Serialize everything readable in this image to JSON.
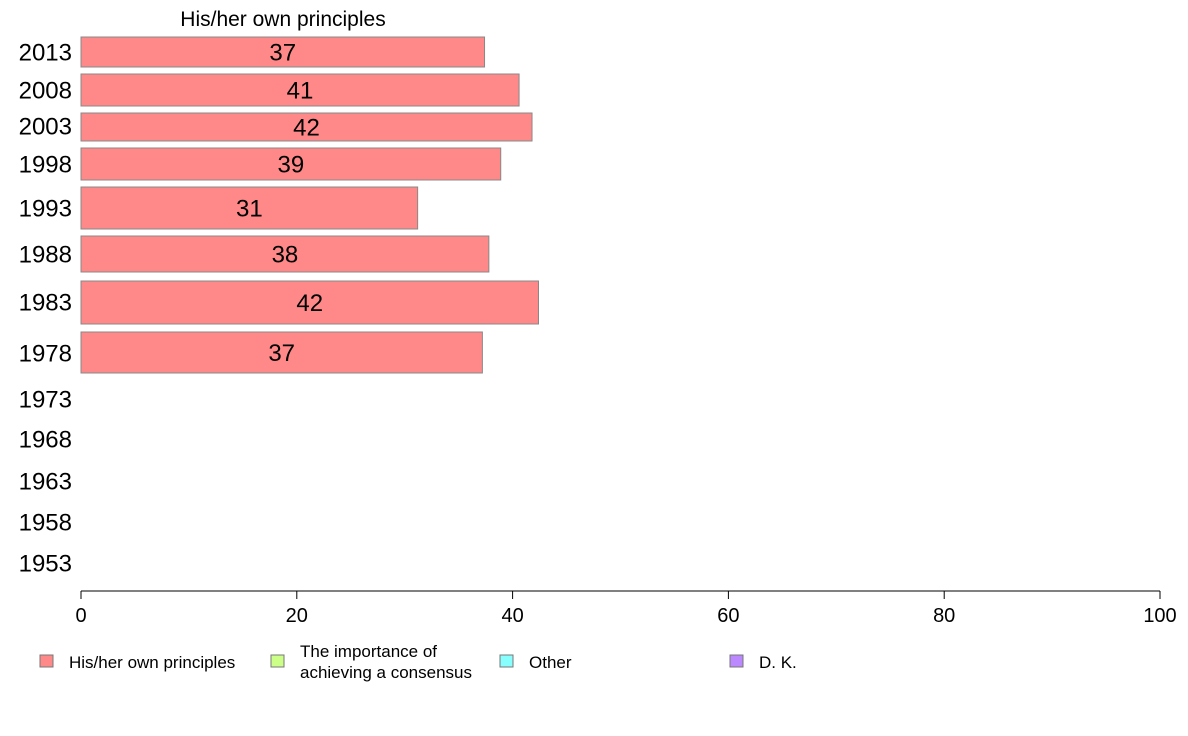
{
  "chart_data": {
    "type": "bar",
    "orientation": "horizontal",
    "panel_title": "His/her own principles",
    "categories": [
      "2013",
      "2008",
      "2003",
      "1998",
      "1993",
      "1988",
      "1983",
      "1978",
      "1973",
      "1968",
      "1963",
      "1958",
      "1953"
    ],
    "series": [
      {
        "name": "His/her own principles",
        "color": "#ff8888",
        "values": [
          37.4,
          40.6,
          41.8,
          38.9,
          31.2,
          37.8,
          42.4,
          37.2,
          null,
          null,
          null,
          null,
          null
        ],
        "labels": [
          "37",
          "41",
          "42",
          "39",
          "31",
          "38",
          "42",
          "37",
          "",
          "",
          "",
          "",
          ""
        ]
      }
    ],
    "xlim": [
      0,
      100
    ],
    "xticks": [
      "0",
      "20",
      "40",
      "60",
      "80",
      "100"
    ],
    "grid": false,
    "legend": {
      "position": "bottom",
      "items": [
        {
          "label": "His/her own principles",
          "color": "#ff8888"
        },
        {
          "label_lines": [
            "The importance of",
            "achieving a consensus"
          ],
          "color": "#ccff88"
        },
        {
          "label": "Other",
          "color": "#88ffff"
        },
        {
          "label": "D. K.",
          "color": "#bb88ff"
        }
      ]
    }
  }
}
